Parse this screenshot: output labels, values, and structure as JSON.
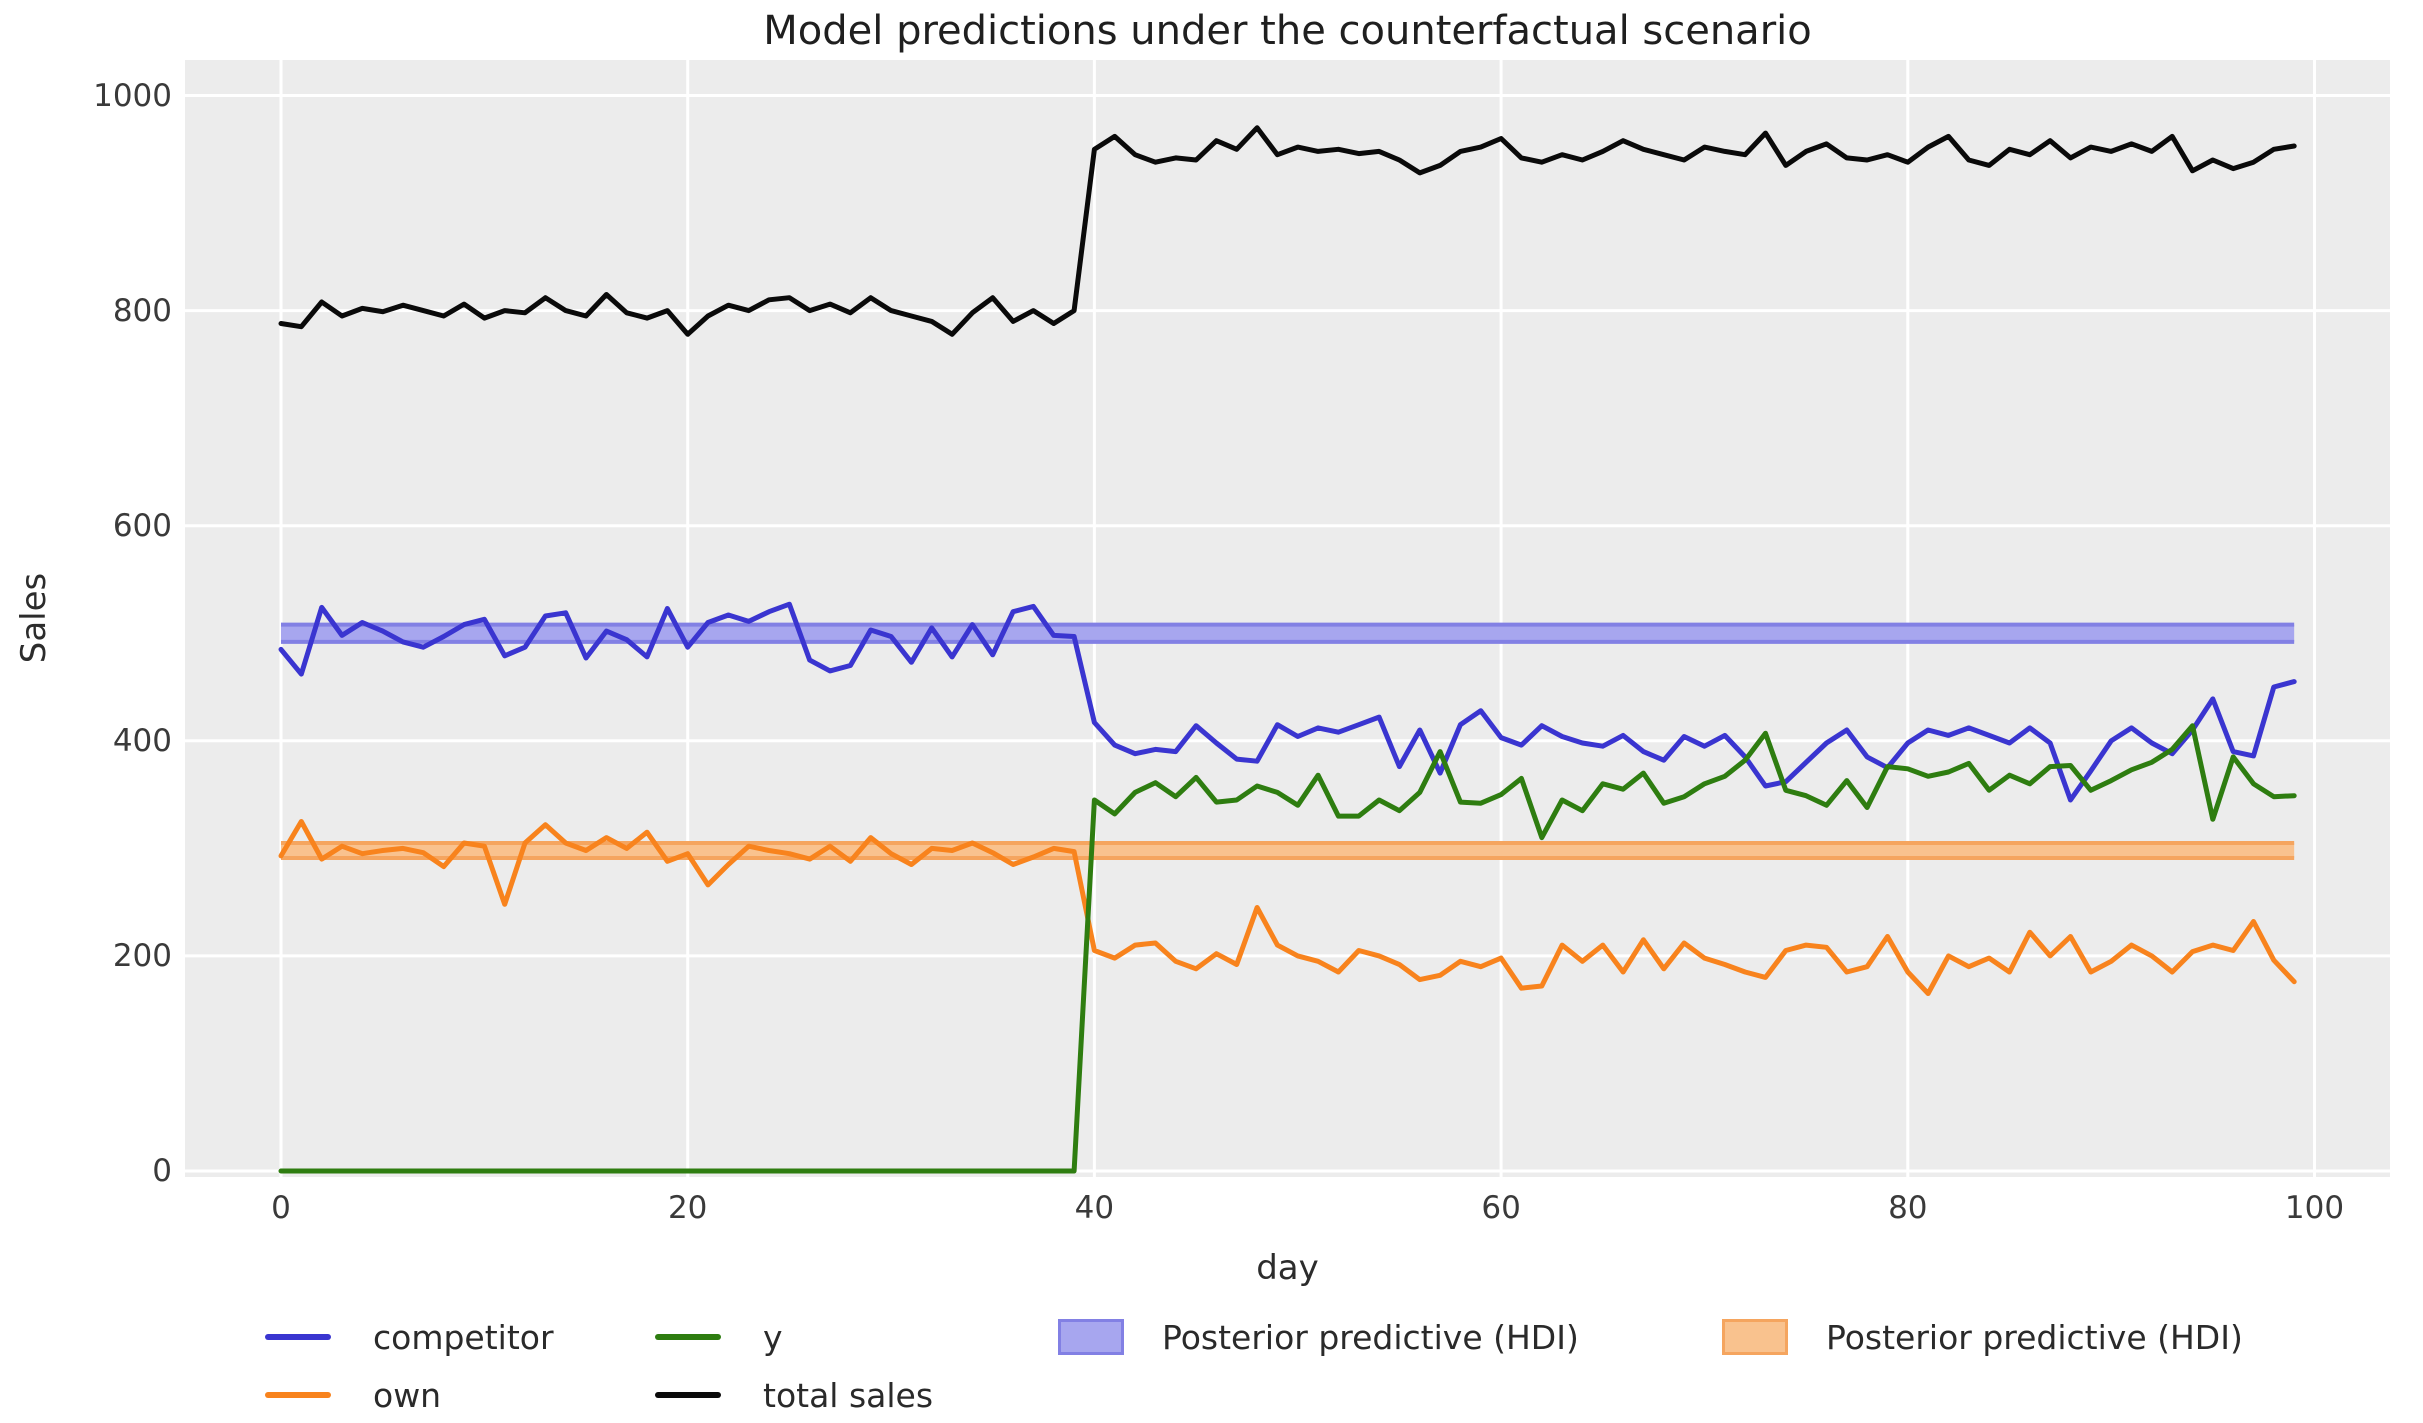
{
  "chart_data": {
    "type": "line",
    "title": "Model predictions under the counterfactual scenario",
    "xlabel": "day",
    "ylabel": "Sales",
    "xticks": [
      0,
      20,
      40,
      60,
      80,
      100
    ],
    "yticks": [
      0,
      200,
      400,
      600,
      800,
      1000
    ],
    "xlim": [
      -4.7,
      103.7
    ],
    "ylim": [
      -6,
      1033
    ],
    "grid": "white on light-gray (ggplot style)",
    "legend_position": "below axes, 4 columns",
    "n_days": 100,
    "x_description": "day index 0-99, one point per day",
    "intervention_day": 40,
    "series": [
      {
        "name": "competitor",
        "color": "#3a35d0",
        "values": [
          485,
          462,
          524,
          498,
          510,
          502,
          492,
          487,
          497,
          508,
          513,
          479,
          487,
          516,
          519,
          477,
          502,
          494,
          478,
          523,
          487,
          510,
          517,
          511,
          520,
          527,
          475,
          465,
          470,
          503,
          497,
          473,
          505,
          478,
          508,
          480,
          520,
          525,
          498,
          497,
          417,
          396,
          388,
          392,
          390,
          414,
          398,
          383,
          381,
          415,
          404,
          412,
          408,
          415,
          422,
          376,
          410,
          370,
          415,
          428,
          403,
          396,
          414,
          404,
          398,
          395,
          405,
          390,
          382,
          404,
          395,
          405,
          385,
          358,
          362,
          380,
          398,
          410,
          385,
          375,
          398,
          410,
          405,
          412,
          405,
          398,
          412,
          398,
          345,
          372,
          400,
          412,
          398,
          388,
          410,
          439,
          390,
          386,
          450,
          455
        ]
      },
      {
        "name": "own",
        "color": "#f8831d",
        "values": [
          293,
          325,
          290,
          302,
          295,
          298,
          300,
          296,
          283,
          305,
          302,
          248,
          305,
          322,
          305,
          298,
          310,
          300,
          315,
          288,
          295,
          266,
          285,
          302,
          298,
          295,
          290,
          302,
          288,
          310,
          295,
          285,
          300,
          298,
          305,
          296,
          285,
          292,
          300,
          297,
          205,
          198,
          210,
          212,
          195,
          188,
          202,
          192,
          245,
          210,
          200,
          195,
          185,
          205,
          200,
          192,
          178,
          182,
          195,
          190,
          198,
          170,
          172,
          210,
          195,
          210,
          185,
          215,
          188,
          212,
          198,
          192,
          185,
          180,
          205,
          210,
          208,
          185,
          190,
          218,
          185,
          165,
          200,
          190,
          198,
          185,
          222,
          200,
          218,
          185,
          195,
          210,
          200,
          185,
          204,
          210,
          205,
          232,
          196,
          176
        ]
      },
      {
        "name": "y",
        "color": "#2e7d10",
        "values": [
          0,
          0,
          0,
          0,
          0,
          0,
          0,
          0,
          0,
          0,
          0,
          0,
          0,
          0,
          0,
          0,
          0,
          0,
          0,
          0,
          0,
          0,
          0,
          0,
          0,
          0,
          0,
          0,
          0,
          0,
          0,
          0,
          0,
          0,
          0,
          0,
          0,
          0,
          0,
          0,
          345,
          332,
          352,
          361,
          348,
          366,
          343,
          345,
          358,
          352,
          340,
          368,
          330,
          330,
          345,
          335,
          352,
          390,
          343,
          342,
          350,
          365,
          310,
          345,
          335,
          360,
          355,
          370,
          342,
          348,
          360,
          367,
          382,
          407,
          354,
          349,
          340,
          363,
          338,
          376,
          374,
          367,
          371,
          379,
          354,
          368,
          360,
          376,
          377,
          354,
          363,
          373,
          380,
          392,
          414,
          327,
          385,
          360,
          348,
          349
        ]
      },
      {
        "name": "total sales",
        "color": "#0a0a0a",
        "values": [
          788,
          785,
          808,
          795,
          802,
          799,
          805,
          800,
          795,
          806,
          793,
          800,
          798,
          812,
          800,
          795,
          815,
          798,
          793,
          800,
          778,
          795,
          805,
          800,
          810,
          812,
          800,
          806,
          798,
          812,
          800,
          795,
          790,
          778,
          798,
          812,
          790,
          800,
          788,
          800,
          950,
          962,
          945,
          938,
          942,
          940,
          958,
          950,
          970,
          945,
          952,
          948,
          950,
          946,
          948,
          940,
          928,
          935,
          948,
          952,
          960,
          942,
          938,
          945,
          940,
          948,
          958,
          950,
          945,
          940,
          952,
          948,
          945,
          965,
          935,
          948,
          955,
          942,
          940,
          945,
          938,
          952,
          962,
          940,
          935,
          950,
          945,
          958,
          942,
          952,
          948,
          955,
          948,
          962,
          930,
          940,
          932,
          938,
          950,
          953
        ]
      }
    ],
    "bands": [
      {
        "label": "Posterior predictive (HDI)",
        "series": "competitor",
        "color": "#a7a6ef",
        "edge_color": "#8280e4",
        "lo": 492,
        "hi": 508,
        "x_range": [
          0,
          99
        ]
      },
      {
        "label": "Posterior predictive (HDI)",
        "series": "own",
        "color": "#f9c28e",
        "edge_color": "#f5a55f",
        "lo": 291,
        "hi": 305,
        "x_range": [
          0,
          99
        ]
      }
    ]
  }
}
